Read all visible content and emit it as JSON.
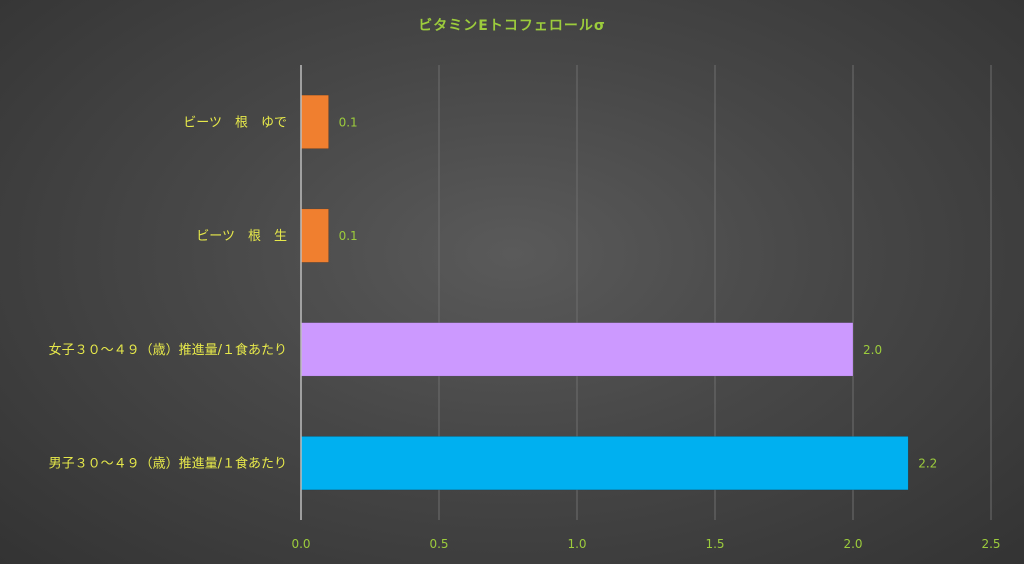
{
  "chart_data": {
    "type": "bar",
    "orientation": "horizontal",
    "title": "ビタミンEトコフェロールσ",
    "categories": [
      "ビーツ　根　ゆで",
      "ビーツ　根　生",
      "女子３０～４９（歳）推進量/１食あたり",
      "男子３０～４９（歳）推進量/１食あたり"
    ],
    "values": [
      0.1,
      0.1,
      2.0,
      2.2
    ],
    "data_labels": [
      "0.1",
      "0.1",
      "2.0",
      "2.2"
    ],
    "bar_colors": [
      "#f07f2f",
      "#f07f2f",
      "#cc99ff",
      "#00b0f0"
    ],
    "xlim": [
      0,
      2.5
    ],
    "xticks": [
      0.0,
      0.5,
      1.0,
      1.5,
      2.0,
      2.5
    ],
    "xtick_labels": [
      "0.0",
      "0.5",
      "1.0",
      "1.5",
      "2.0",
      "2.5"
    ],
    "grid": true,
    "legend": "none"
  }
}
